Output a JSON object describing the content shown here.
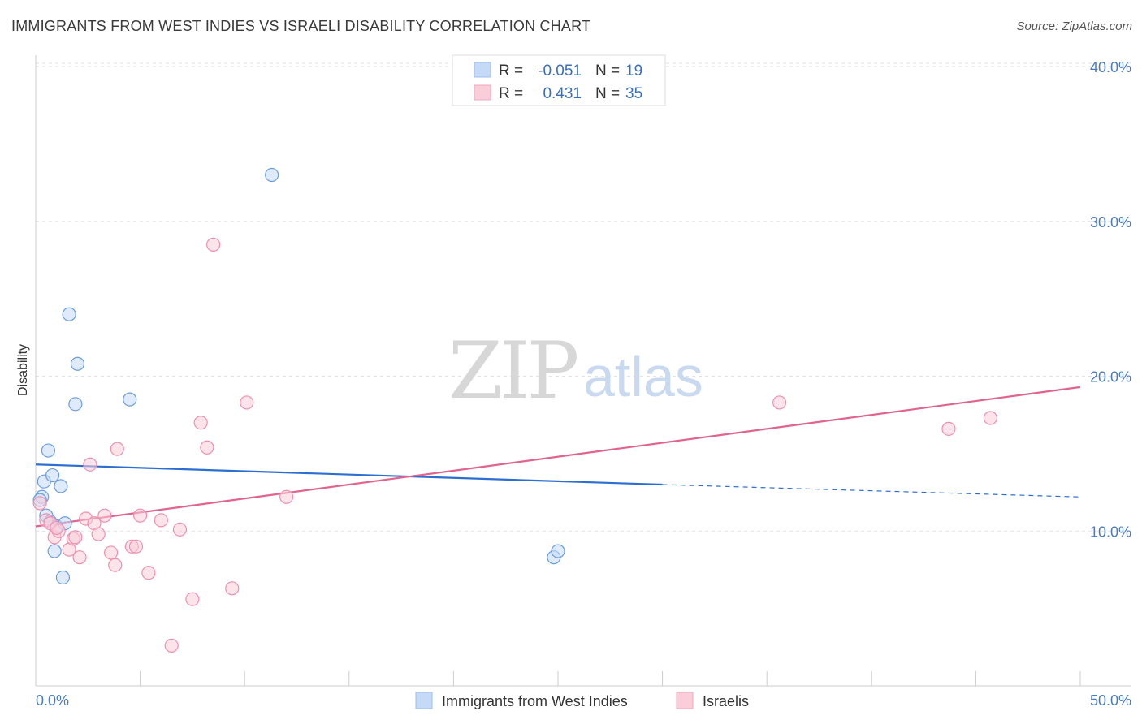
{
  "title": "IMMIGRANTS FROM WEST INDIES VS ISRAELI DISABILITY CORRELATION CHART",
  "source": "Source: ZipAtlas.com",
  "watermark": {
    "part1": "ZIP",
    "part2": "atlas"
  },
  "legend_top": {
    "rows": [
      {
        "r_label": "R =",
        "r_value": "-0.051",
        "n_label": "N =",
        "n_value": "19",
        "color": "#9dbfee",
        "fill": "#c5daf7"
      },
      {
        "r_label": "R =",
        "r_value": "0.431",
        "n_label": "N =",
        "n_value": "35",
        "color": "#f3a7c0",
        "fill": "#f9cdd9"
      }
    ]
  },
  "legend_bottom": {
    "items": [
      {
        "label": "Immigrants from West Indies",
        "fill": "#c5daf7",
        "stroke": "#9dbfee"
      },
      {
        "label": "Israelis",
        "fill": "#f9cdd9",
        "stroke": "#f3a7c0"
      }
    ]
  },
  "chart_data": {
    "type": "scatter",
    "title": "IMMIGRANTS FROM WEST INDIES VS ISRAELI DISABILITY CORRELATION CHART",
    "xlabel": "",
    "ylabel": "Disability",
    "xlim": [
      0,
      50
    ],
    "ylim": [
      0,
      40
    ],
    "x_ticks": [
      "0.0%",
      "50.0%"
    ],
    "y_ticks": [
      "10.0%",
      "20.0%",
      "30.0%",
      "40.0%"
    ],
    "y_tick_values": [
      10,
      20,
      30,
      40
    ],
    "grid": true,
    "series": [
      {
        "name": "Immigrants from West Indies",
        "color": "#6a9de0",
        "fill": "#c5daf7",
        "points": [
          [
            0.3,
            12.2
          ],
          [
            0.4,
            13.2
          ],
          [
            0.5,
            11.0
          ],
          [
            0.6,
            15.2
          ],
          [
            0.7,
            10.6
          ],
          [
            0.8,
            13.6
          ],
          [
            0.9,
            8.7
          ],
          [
            1.0,
            10.3
          ],
          [
            1.2,
            12.9
          ],
          [
            1.3,
            7.0
          ],
          [
            1.4,
            10.5
          ],
          [
            1.6,
            24.0
          ],
          [
            1.9,
            18.2
          ],
          [
            2.0,
            20.8
          ],
          [
            4.5,
            18.5
          ],
          [
            11.3,
            33.0
          ],
          [
            24.8,
            8.3
          ],
          [
            25.0,
            8.7
          ],
          [
            0.2,
            12.0
          ]
        ],
        "trend": {
          "x1": 0,
          "y1": 14.3,
          "x2": 30,
          "y2": 13.0,
          "dash_x2": 50,
          "dash_y2": 12.2,
          "color": "#2d6fd0"
        }
      },
      {
        "name": "Israelis",
        "color": "#ef8fb0",
        "fill": "#f9cdd9",
        "points": [
          [
            0.2,
            11.8
          ],
          [
            0.5,
            10.7
          ],
          [
            0.7,
            10.5
          ],
          [
            0.9,
            9.6
          ],
          [
            1.1,
            10.0
          ],
          [
            1.6,
            8.8
          ],
          [
            1.8,
            9.5
          ],
          [
            1.9,
            9.6
          ],
          [
            2.1,
            8.3
          ],
          [
            2.4,
            10.8
          ],
          [
            2.6,
            14.3
          ],
          [
            2.8,
            10.5
          ],
          [
            3.0,
            9.8
          ],
          [
            3.3,
            11.0
          ],
          [
            3.6,
            8.6
          ],
          [
            3.8,
            7.8
          ],
          [
            3.9,
            15.3
          ],
          [
            4.6,
            9.0
          ],
          [
            4.8,
            9.0
          ],
          [
            5.0,
            11.0
          ],
          [
            5.4,
            7.3
          ],
          [
            6.0,
            10.7
          ],
          [
            6.5,
            2.6
          ],
          [
            6.9,
            10.1
          ],
          [
            7.5,
            5.6
          ],
          [
            7.9,
            17.0
          ],
          [
            8.2,
            15.4
          ],
          [
            8.5,
            28.5
          ],
          [
            9.4,
            6.3
          ],
          [
            10.1,
            18.3
          ],
          [
            12.0,
            12.2
          ],
          [
            35.6,
            18.3
          ],
          [
            43.7,
            16.6
          ],
          [
            45.7,
            17.3
          ],
          [
            1.0,
            10.2
          ]
        ],
        "trend": {
          "x1": 0,
          "y1": 10.3,
          "x2": 50,
          "y2": 19.3,
          "color": "#e0648e"
        }
      }
    ]
  }
}
